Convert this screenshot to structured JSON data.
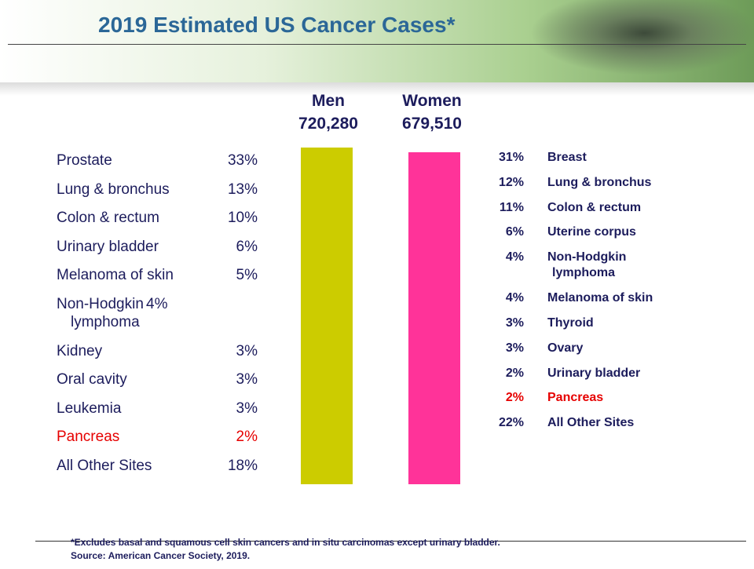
{
  "header": {
    "title": "2019 Estimated US Cancer Cases*"
  },
  "men": {
    "label": "Men",
    "total": "720,280",
    "rows": [
      {
        "site": [
          "Prostate"
        ],
        "pct": "33%"
      },
      {
        "site": [
          "Lung & bronchus"
        ],
        "pct": "13%"
      },
      {
        "site": [
          "Colon & rectum"
        ],
        "pct": "10%"
      },
      {
        "site": [
          "Urinary bladder"
        ],
        "pct": "6%"
      },
      {
        "site": [
          "Melanoma of skin"
        ],
        "pct": "5%"
      },
      {
        "site": [
          "Non-Hodgkin",
          "lymphoma"
        ],
        "pct": "4%"
      },
      {
        "site": [
          "Kidney"
        ],
        "pct": "3%"
      },
      {
        "site": [
          "Oral cavity"
        ],
        "pct": "3%"
      },
      {
        "site": [
          "Leukemia"
        ],
        "pct": "3%"
      },
      {
        "site": [
          "Pancreas"
        ],
        "pct": "2%"
      },
      {
        "site": [
          "All Other Sites"
        ],
        "pct": "18%"
      }
    ]
  },
  "women": {
    "label": "Women",
    "total": "679,510",
    "rows": [
      {
        "site": [
          "Breast"
        ],
        "pct": "31%"
      },
      {
        "site": [
          "Lung & bronchus"
        ],
        "pct": "12%"
      },
      {
        "site": [
          "Colon & rectum"
        ],
        "pct": "11%"
      },
      {
        "site": [
          "Uterine corpus"
        ],
        "pct": "6%"
      },
      {
        "site": [
          "Non-Hodgkin",
          "lymphoma"
        ],
        "pct": "4%"
      },
      {
        "site": [
          "Melanoma of skin"
        ],
        "pct": "4%"
      },
      {
        "site": [
          "Thyroid"
        ],
        "pct": "3%"
      },
      {
        "site": [
          "Ovary"
        ],
        "pct": "3%"
      },
      {
        "site": [
          "Urinary bladder"
        ],
        "pct": "2%"
      },
      {
        "site": [
          "Pancreas"
        ],
        "pct": "2%"
      },
      {
        "site": [
          "All Other Sites"
        ],
        "pct": "22%"
      }
    ]
  },
  "footnote": [
    "*Excludes basal and squamous cell skin cancers and in situ carcinomas except urinary bladder.",
    "Source: American Cancer Society, 2019."
  ]
}
